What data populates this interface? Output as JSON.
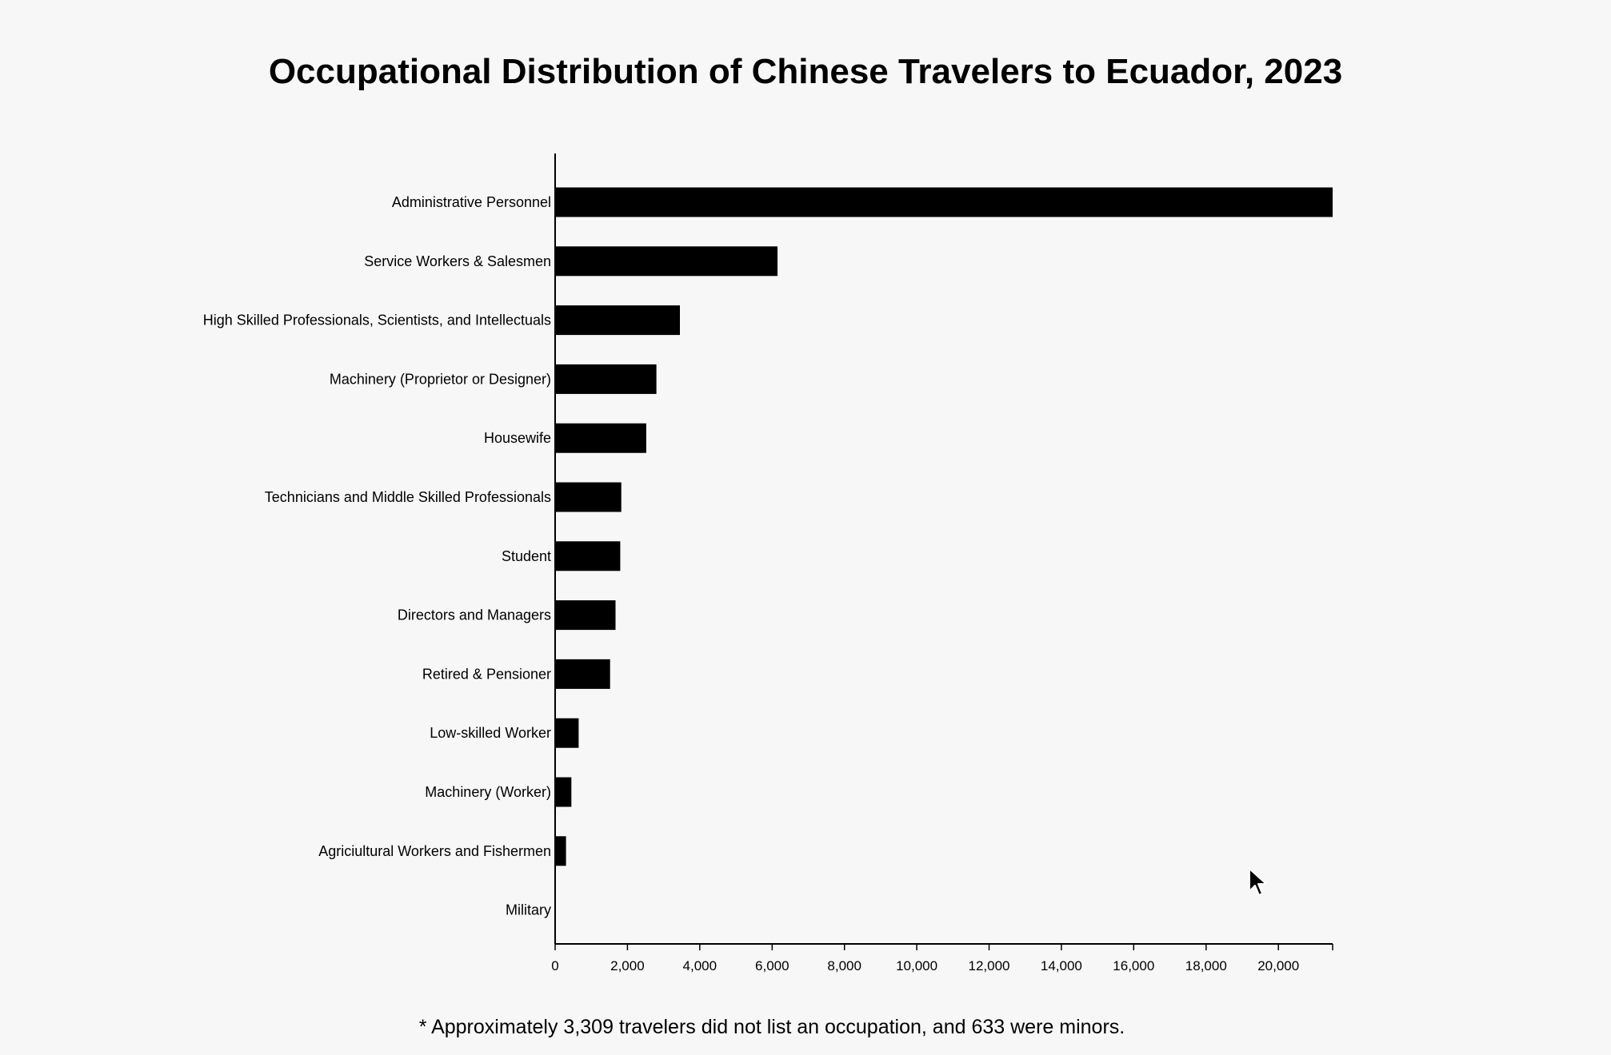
{
  "chart_data": {
    "type": "bar",
    "orientation": "horizontal",
    "title": "Occupational Distribution of Chinese Travelers to Ecuador, 2023",
    "xlabel": "",
    "ylabel": "",
    "xlim": [
      0,
      21500
    ],
    "grid": false,
    "bar_color": "#000000",
    "categories": [
      "Administrative Personnel",
      "Service Workers & Salesmen",
      "High Skilled Professionals, Scientists, and Intellectuals",
      "Machinery (Proprietor or Designer)",
      "Housewife",
      "Technicians and Middle Skilled Professionals",
      "Student",
      "Directors and Managers",
      "Retired & Pensioner",
      "Low-skilled Worker",
      "Machinery (Worker)",
      "Agriciultural Workers and Fishermen",
      "Military"
    ],
    "values": [
      21500,
      6150,
      3450,
      2800,
      2520,
      1830,
      1800,
      1670,
      1520,
      650,
      450,
      300,
      0
    ],
    "x_ticks": [
      0,
      2000,
      4000,
      6000,
      8000,
      10000,
      12000,
      14000,
      16000,
      18000,
      20000
    ],
    "x_tick_labels": [
      "0",
      "2,000",
      "4,000",
      "6,000",
      "8,000",
      "10,000",
      "12,000",
      "14,000",
      "16,000",
      "18,000",
      "20,000"
    ],
    "footnote": "* Approximately 3,309 travelers did not list an occupation, and 633 were minors."
  }
}
